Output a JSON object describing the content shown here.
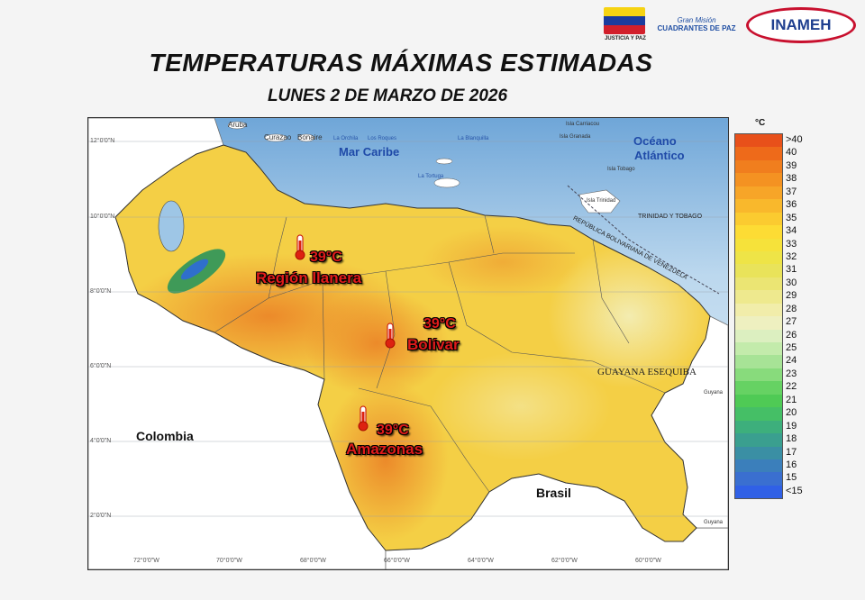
{
  "header": {
    "title": "TEMPERATURAS MÁXIMAS ESTIMADAS",
    "date": "LUNES 2 DE MARZO DE 2026"
  },
  "logos": {
    "justicia": "JUSTICIA Y PAZ",
    "gran_mision_top": "Gran Misión",
    "gran_mision_bottom": "CUADRANTES DE PAZ",
    "inameh": "INAMEH"
  },
  "map": {
    "latitudes": [
      "12°0'0\"N",
      "10°0'0\"N",
      "8°0'0\"N",
      "6°0'0\"N",
      "4°0'0\"N",
      "2°0'0\"N"
    ],
    "longitudes": [
      "72°0'0\"W",
      "70°0'0\"W",
      "68°0'0\"W",
      "66°0'0\"W",
      "64°0'0\"W",
      "62°0'0\"W",
      "60°0'0\"W"
    ],
    "seas": {
      "caribe": "Mar Caribe",
      "atlantico_1": "Océano",
      "atlantico_2": "Atlántico"
    },
    "countries": {
      "colombia": "Colombia",
      "brasil": "Brasil",
      "guayana": "GUAYANA ESEQUIBA",
      "trinidad": "TRINIDAD Y TOBAGO",
      "rbv": "REPÚBLICA BOLIVARIANA DE VENEZUELA",
      "guyana": "Guyana",
      "guyana2": "Guyana"
    },
    "places": {
      "aruba": "Aruba",
      "curazao": "Curazao",
      "bonaire": "Bonaire",
      "orchila": "La Orchila",
      "roques": "Los Roques",
      "tortuga": "La Tortuga",
      "blanquilla": "La Blanquilla",
      "carriacou": "Isla Carriacou",
      "granada": "Isla Granada",
      "tobago": "Isla Tobago",
      "trinidad": "Isla Trinidad"
    }
  },
  "callouts": [
    {
      "temp": "39°C",
      "region": "Región llanera"
    },
    {
      "temp": "39°C",
      "region": "Bolívar"
    },
    {
      "temp": "39°C",
      "region": "Amazonas"
    }
  ],
  "legend": {
    "unit": "°C",
    "labels": [
      ">40",
      "40",
      "39",
      "38",
      "37",
      "36",
      "35",
      "34",
      "33",
      "32",
      "31",
      "30",
      "29",
      "28",
      "27",
      "26",
      "25",
      "24",
      "23",
      "22",
      "21",
      "20",
      "19",
      "18",
      "17",
      "16",
      "15",
      "<15"
    ],
    "colors": [
      "#e8501a",
      "#ee6a1a",
      "#f07e1e",
      "#f49222",
      "#f7a528",
      "#f9b82c",
      "#fbcb30",
      "#fddc34",
      "#f6e23a",
      "#eee447",
      "#e9e35a",
      "#ebe573",
      "#eee98e",
      "#f1edaa",
      "#eef0c0",
      "#dcefc0",
      "#c3ebab",
      "#a7e396",
      "#88db7c",
      "#66d263",
      "#4fca55",
      "#45bf66",
      "#3daf7c",
      "#3a9f8f",
      "#3a8fa4",
      "#3b7fbb",
      "#3a6fd0",
      "#3060e6"
    ]
  }
}
